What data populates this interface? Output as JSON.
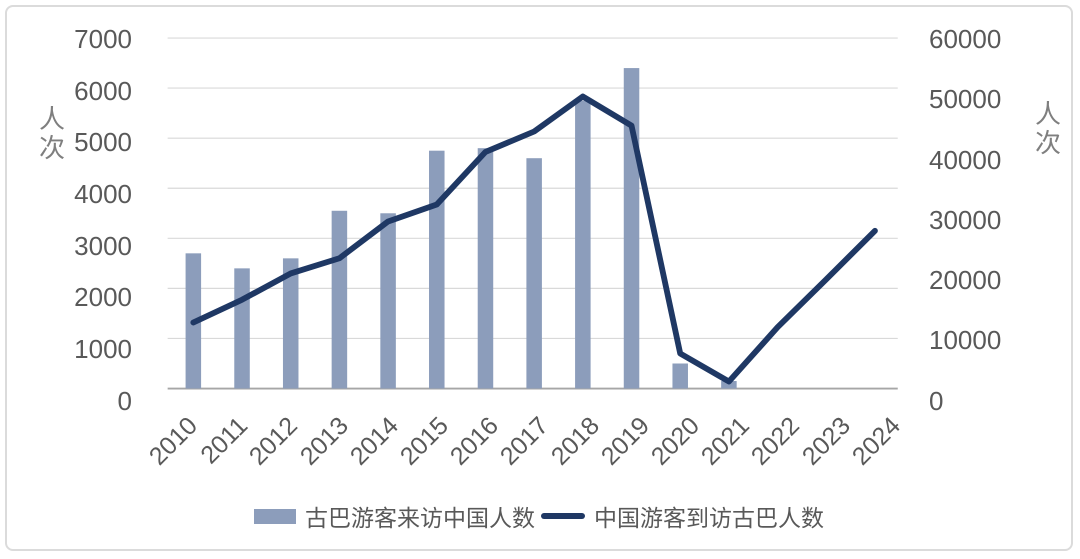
{
  "chart_data": {
    "type": "bar+line combo",
    "categories": [
      "2010",
      "2011",
      "2012",
      "2013",
      "2014",
      "2015",
      "2016",
      "2017",
      "2018",
      "2019",
      "2020",
      "2021",
      "2022",
      "2023",
      "2024"
    ],
    "series": [
      {
        "name": "古巴游客来访中国人数",
        "type": "bar",
        "axis": "left",
        "color": "#8C9DBB",
        "values": [
          2700,
          2400,
          2600,
          3550,
          3500,
          4750,
          4800,
          4600,
          5750,
          6400,
          500,
          150,
          null,
          null,
          null
        ]
      },
      {
        "name": "中国游客到访古巴人数",
        "type": "line",
        "axis": "right",
        "color": "#1F3864",
        "values": [
          11300,
          15200,
          19700,
          22300,
          28600,
          31500,
          40500,
          44000,
          50000,
          45000,
          6000,
          1200,
          10500,
          18700,
          27000
        ]
      }
    ],
    "left_axis": {
      "label": "人次",
      "min": 0,
      "max": 7000,
      "step": 1000,
      "ticks": [
        "0",
        "1000",
        "2000",
        "3000",
        "4000",
        "5000",
        "6000",
        "7000"
      ]
    },
    "right_axis": {
      "label": "人次",
      "min": 0,
      "max": 60000,
      "step": 10000,
      "ticks": [
        "0",
        "10000",
        "20000",
        "30000",
        "40000",
        "50000",
        "60000"
      ]
    },
    "grid": "horizontal-only",
    "legend_position": "bottom",
    "title": ""
  },
  "legend": {
    "bar_label": "古巴游客来访中国人数",
    "line_label": "中国游客到访古巴人数"
  }
}
